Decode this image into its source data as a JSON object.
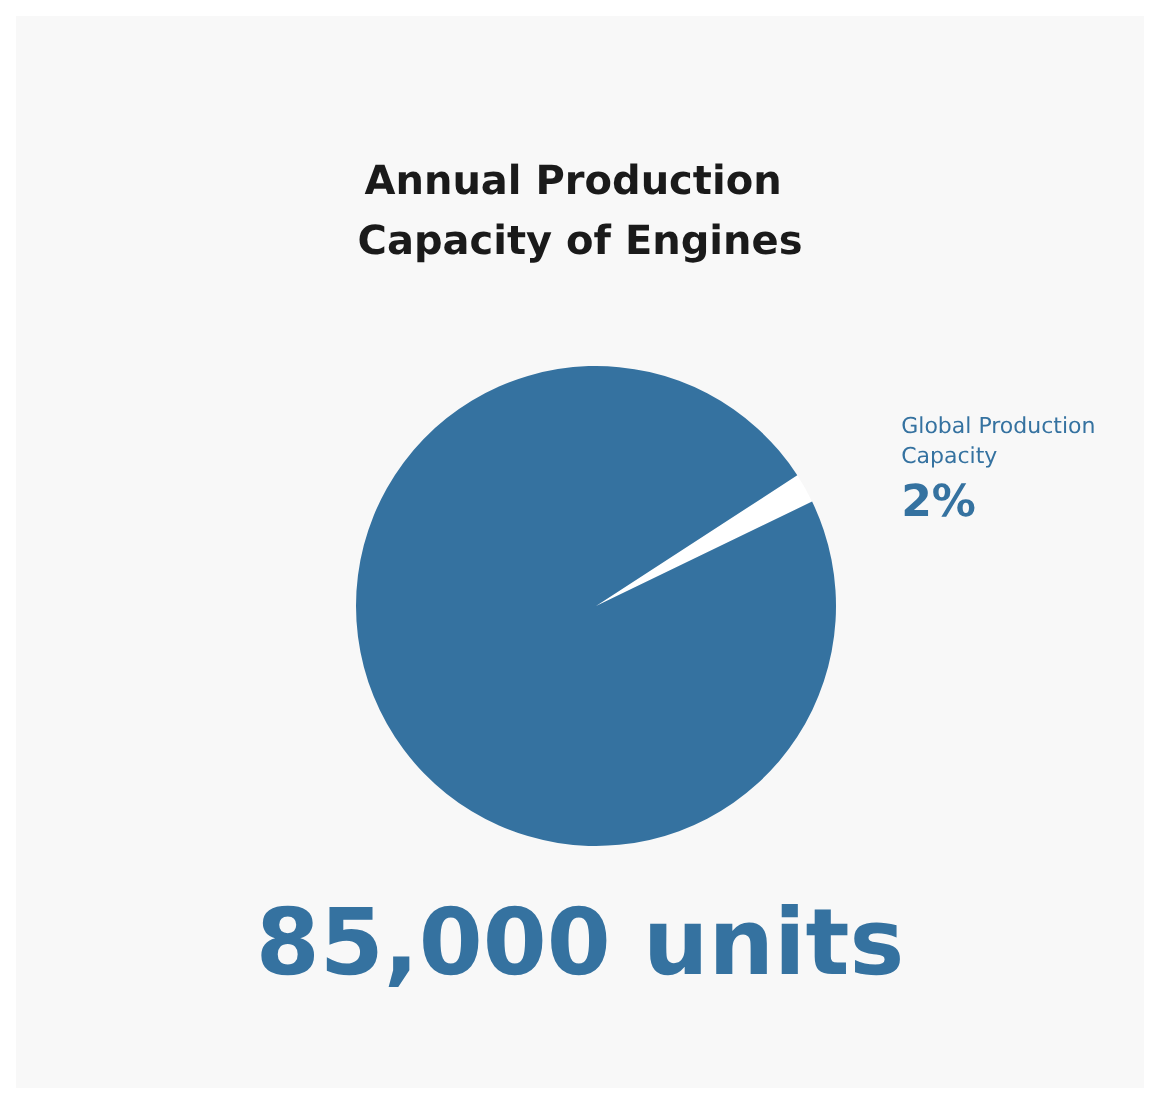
{
  "chart_data": {
    "type": "pie",
    "title": "Annual Production Capacity of Engines",
    "categories": [
      "Global Production Capacity",
      null
    ],
    "values": [
      2,
      98
    ],
    "colors": [
      "#ffffff",
      "#3572a0"
    ],
    "value_labels": [
      "2%",
      null
    ],
    "annotations": [
      "85,000 units"
    ],
    "legend": false
  }
}
